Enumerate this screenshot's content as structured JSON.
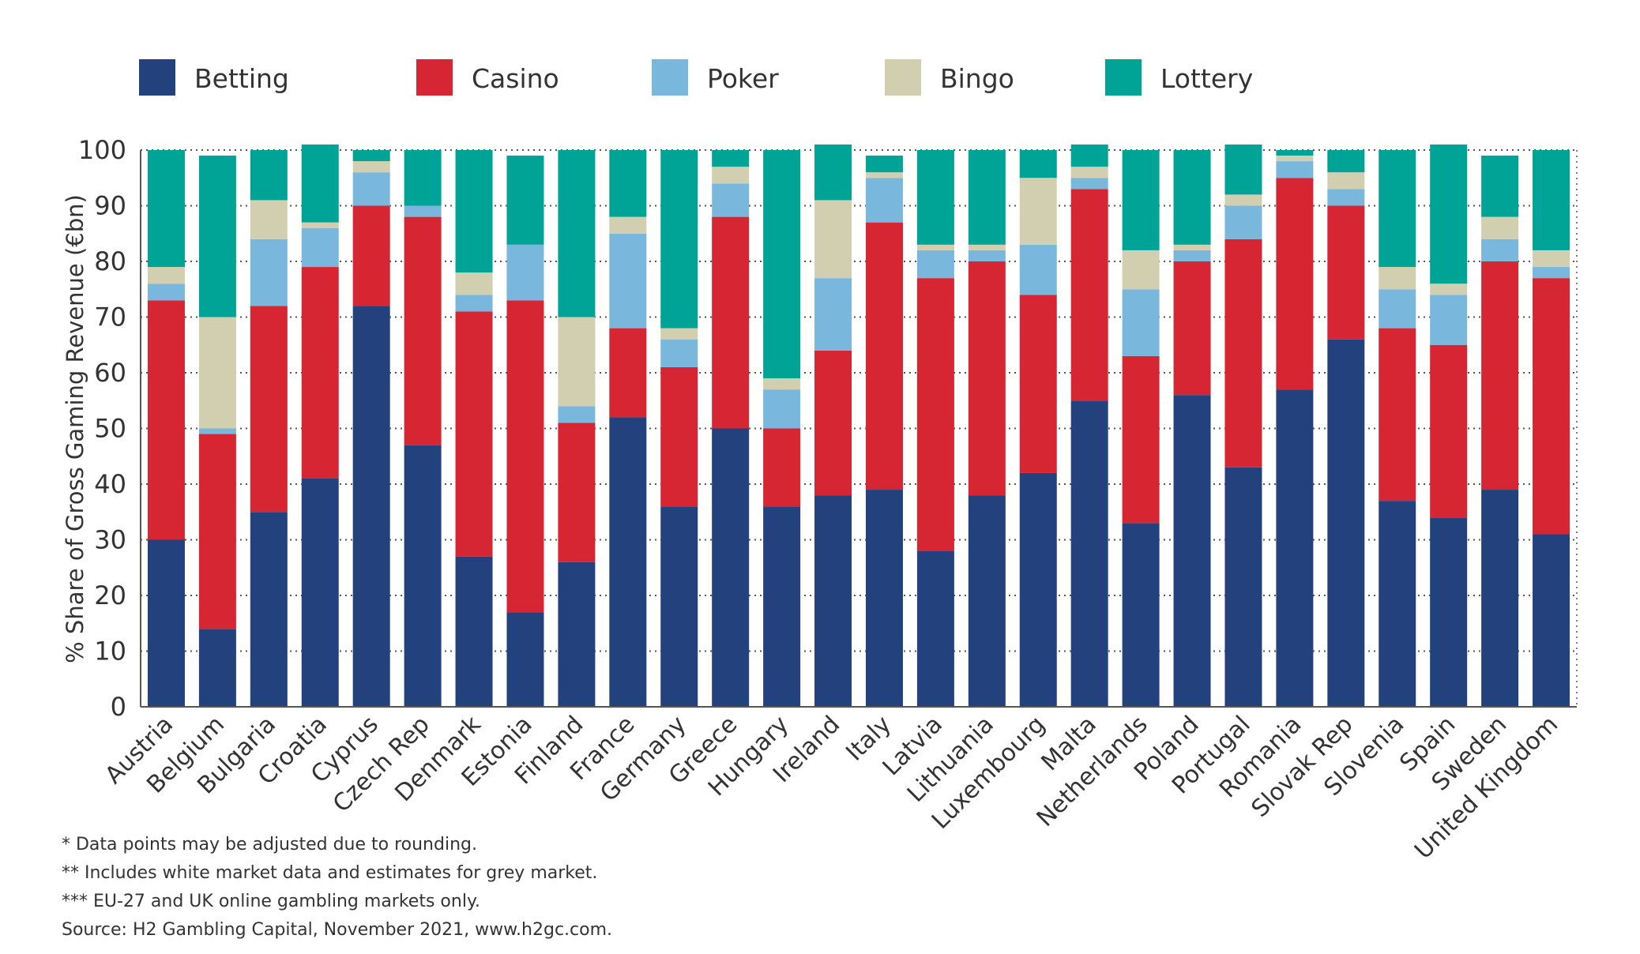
{
  "chart_data": {
    "type": "bar",
    "stacked": true,
    "title": "",
    "xlabel": "",
    "ylabel": "% Share of Gross Gaming Revenue (€bn)",
    "ylim": [
      0,
      100
    ],
    "yticks": [
      0,
      10,
      20,
      30,
      40,
      50,
      60,
      70,
      80,
      90,
      100
    ],
    "grid": true,
    "legend_position": "top",
    "categories": [
      "Austria",
      "Belgium",
      "Bulgaria",
      "Croatia",
      "Cyprus",
      "Czech Rep",
      "Denmark",
      "Estonia",
      "Finland",
      "France",
      "Germany",
      "Greece",
      "Hungary",
      "Ireland",
      "Italy",
      "Latvia",
      "Lithuania",
      "Luxembourg",
      "Malta",
      "Netherlands",
      "Poland",
      "Portugal",
      "Romania",
      "Slovak Rep",
      "Slovenia",
      "Spain",
      "Sweden",
      "United Kingdom"
    ],
    "series": [
      {
        "name": "Betting",
        "color": "#23417c",
        "values": [
          30,
          14,
          35,
          41,
          72,
          47,
          27,
          17,
          26,
          52,
          36,
          50,
          36,
          38,
          39,
          28,
          38,
          42,
          55,
          33,
          56,
          43,
          57,
          66,
          37,
          34,
          39,
          31
        ]
      },
      {
        "name": "Casino",
        "color": "#d62533",
        "values": [
          43,
          35,
          37,
          38,
          18,
          41,
          44,
          56,
          25,
          16,
          25,
          38,
          14,
          26,
          48,
          49,
          42,
          32,
          38,
          30,
          24,
          41,
          38,
          24,
          31,
          31,
          41,
          46
        ]
      },
      {
        "name": "Poker",
        "color": "#7ab7dd",
        "values": [
          3,
          1,
          12,
          7,
          6,
          2,
          3,
          10,
          3,
          17,
          5,
          6,
          7,
          13,
          8,
          5,
          2,
          9,
          2,
          12,
          2,
          6,
          3,
          3,
          7,
          9,
          4,
          2
        ]
      },
      {
        "name": "Bingo",
        "color": "#d2cfb0",
        "values": [
          3,
          20,
          7,
          1,
          2,
          0,
          4,
          0,
          16,
          3,
          2,
          3,
          2,
          14,
          1,
          1,
          1,
          12,
          2,
          7,
          1,
          2,
          1,
          3,
          4,
          2,
          4,
          3
        ]
      },
      {
        "name": "Lottery",
        "color": "#00a497",
        "values": [
          21,
          29,
          9,
          14,
          2,
          10,
          22,
          16,
          30,
          12,
          32,
          3,
          41,
          10,
          3,
          17,
          17,
          5,
          4,
          18,
          17,
          9,
          1,
          4,
          21,
          25,
          11,
          18
        ]
      }
    ]
  },
  "footnotes": [
    "* Data points may be adjusted due to rounding.",
    "** Includes white market data and estimates for grey market.",
    "*** EU-27 and UK online gambling markets only.",
    "Source: H2 Gambling Capital, November 2021, www.h2gc.com."
  ]
}
